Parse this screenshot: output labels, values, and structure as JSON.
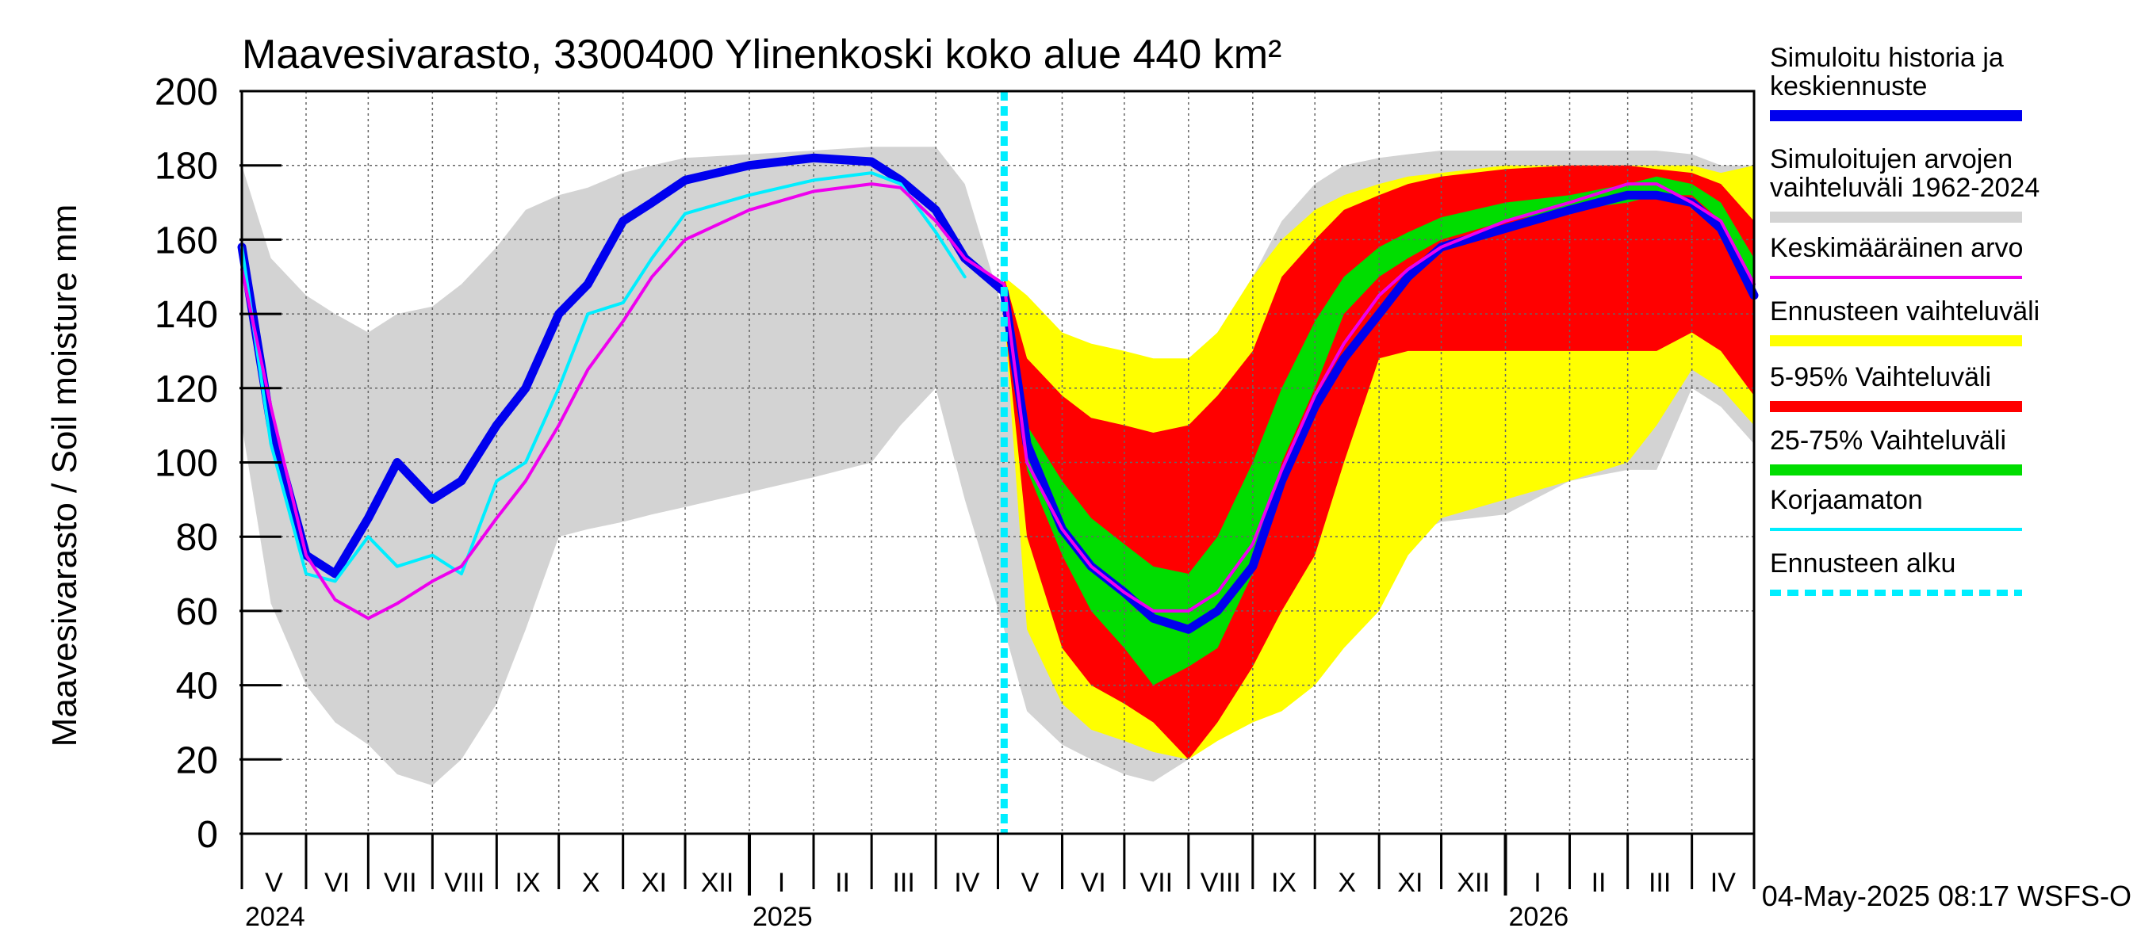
{
  "chart_data": {
    "type": "area",
    "title": "Maavesivarasto, 3300400 Ylinenkoski koko alue 440 km²",
    "ylabel": "Maavesivarasto / Soil moisture   mm",
    "ylim": [
      0,
      200
    ],
    "y_ticks": [
      "0",
      "20",
      "40",
      "60",
      "80",
      "100",
      "120",
      "140",
      "160",
      "180",
      "200"
    ],
    "x_start": "2024-05-01",
    "x_end": "2026-05-01",
    "months": [
      "V",
      "VI",
      "VII",
      "VIII",
      "IX",
      "X",
      "XI",
      "XII",
      "I",
      "II",
      "III",
      "IV",
      "V",
      "VI",
      "VII",
      "VIII",
      "IX",
      "X",
      "XI",
      "XII",
      "I",
      "II",
      "III",
      "IV"
    ],
    "years": [
      "2024",
      "2025",
      "2026"
    ],
    "forecast_start": "2025-05-04",
    "footer": "04-May-2025 08:17 WSFS-O",
    "colors": {
      "history_range": "#d3d3d3",
      "forecast_range": "#ffff00",
      "p5_95": "#ff0000",
      "p25_75": "#00dd00",
      "simulated": "#0000ee",
      "mean": "#ee00ee",
      "uncorrected": "#00eeff",
      "forecast_start_line": "#00eeff"
    },
    "legend": [
      {
        "label": "Simuloitu historia ja keskiennuste",
        "color": "#0000ee",
        "style": "thick"
      },
      {
        "label": "Simuloitujen arvojen vaihteluväli 1962-2024",
        "color": "#d3d3d3",
        "style": "thick"
      },
      {
        "label": "Keskimääräinen arvo",
        "color": "#ee00ee",
        "style": "thin"
      },
      {
        "label": "Ennusteen vaihteluväli",
        "color": "#ffff00",
        "style": "thick"
      },
      {
        "label": "5-95% Vaihteluväli",
        "color": "#ff0000",
        "style": "thick"
      },
      {
        "label": "25-75% Vaihteluväli",
        "color": "#00dd00",
        "style": "thick"
      },
      {
        "label": "Korjaamaton",
        "color": "#00eeff",
        "style": "thin"
      },
      {
        "label": "Ennusteen alku",
        "color": "#00eeff",
        "style": "dashed"
      }
    ],
    "x": [
      "2024-05-01",
      "2024-05-15",
      "2024-06-01",
      "2024-06-15",
      "2024-07-01",
      "2024-07-15",
      "2024-08-01",
      "2024-08-15",
      "2024-09-01",
      "2024-09-15",
      "2024-10-01",
      "2024-10-15",
      "2024-11-01",
      "2024-11-15",
      "2024-12-01",
      "2025-01-01",
      "2025-02-01",
      "2025-03-01",
      "2025-03-15",
      "2025-04-01",
      "2025-04-15",
      "2025-05-04",
      "2025-05-15",
      "2025-06-01",
      "2025-06-15",
      "2025-07-01",
      "2025-07-15",
      "2025-08-01",
      "2025-08-15",
      "2025-09-01",
      "2025-09-15",
      "2025-10-01",
      "2025-10-15",
      "2025-11-01",
      "2025-11-15",
      "2025-12-01",
      "2026-01-01",
      "2026-02-01",
      "2026-03-01",
      "2026-03-15",
      "2026-04-01",
      "2026-04-15",
      "2026-05-01"
    ],
    "series": [
      {
        "key": "hist_min",
        "values": [
          110,
          62,
          40,
          30,
          24,
          16,
          13,
          20,
          35,
          55,
          80,
          82,
          84,
          86,
          88,
          92,
          96,
          100,
          110,
          120,
          90,
          55,
          33,
          24,
          20,
          16,
          14,
          20,
          27,
          30,
          35,
          50,
          70,
          75,
          80,
          84,
          86,
          95,
          98,
          98,
          120,
          115,
          105
        ]
      },
      {
        "key": "hist_max",
        "values": [
          180,
          155,
          145,
          140,
          135,
          140,
          142,
          148,
          158,
          168,
          172,
          174,
          178,
          180,
          182,
          183,
          184,
          185,
          185,
          185,
          175,
          140,
          125,
          120,
          118,
          118,
          120,
          125,
          135,
          150,
          165,
          175,
          180,
          182,
          183,
          184,
          184,
          184,
          184,
          184,
          183,
          180,
          180
        ]
      },
      {
        "key": "fc_min",
        "values": [
          null,
          null,
          null,
          null,
          null,
          null,
          null,
          null,
          null,
          null,
          null,
          null,
          null,
          null,
          null,
          null,
          null,
          null,
          null,
          null,
          null,
          140,
          55,
          35,
          28,
          25,
          22,
          20,
          25,
          30,
          33,
          40,
          50,
          60,
          75,
          85,
          90,
          95,
          100,
          110,
          125,
          120,
          110
        ]
      },
      {
        "key": "fc_max",
        "values": [
          null,
          null,
          null,
          null,
          null,
          null,
          null,
          null,
          null,
          null,
          null,
          null,
          null,
          null,
          null,
          null,
          null,
          null,
          null,
          null,
          null,
          150,
          145,
          135,
          132,
          130,
          128,
          128,
          135,
          150,
          160,
          168,
          172,
          175,
          177,
          178,
          180,
          180,
          180,
          180,
          180,
          178,
          180
        ]
      },
      {
        "key": "p5",
        "values": [
          null,
          null,
          null,
          null,
          null,
          null,
          null,
          null,
          null,
          null,
          null,
          null,
          null,
          null,
          null,
          null,
          null,
          null,
          null,
          null,
          null,
          140,
          80,
          50,
          40,
          35,
          30,
          20,
          30,
          45,
          60,
          75,
          100,
          128,
          130,
          130,
          130,
          130,
          130,
          130,
          135,
          130,
          118
        ]
      },
      {
        "key": "p95",
        "values": [
          null,
          null,
          null,
          null,
          null,
          null,
          null,
          null,
          null,
          null,
          null,
          null,
          null,
          null,
          null,
          null,
          null,
          null,
          null,
          null,
          null,
          150,
          128,
          118,
          112,
          110,
          108,
          110,
          118,
          130,
          150,
          160,
          168,
          172,
          175,
          177,
          179,
          180,
          180,
          179,
          178,
          175,
          165
        ]
      },
      {
        "key": "p25",
        "values": [
          null,
          null,
          null,
          null,
          null,
          null,
          null,
          null,
          null,
          null,
          null,
          null,
          null,
          null,
          null,
          null,
          null,
          null,
          null,
          null,
          null,
          145,
          98,
          75,
          60,
          50,
          40,
          45,
          50,
          70,
          100,
          120,
          140,
          150,
          155,
          160,
          165,
          168,
          170,
          172,
          172,
          165,
          148
        ]
      },
      {
        "key": "p75",
        "values": [
          null,
          null,
          null,
          null,
          null,
          null,
          null,
          null,
          null,
          null,
          null,
          null,
          null,
          null,
          null,
          null,
          null,
          null,
          null,
          null,
          null,
          148,
          110,
          95,
          85,
          78,
          72,
          70,
          80,
          100,
          120,
          138,
          150,
          158,
          162,
          166,
          170,
          172,
          175,
          177,
          175,
          170,
          155
        ]
      },
      {
        "key": "simulated",
        "name": "Simuloitu historia ja keskiennuste",
        "values": [
          158,
          110,
          75,
          70,
          85,
          100,
          90,
          95,
          110,
          120,
          140,
          148,
          165,
          170,
          176,
          180,
          182,
          181,
          176,
          168,
          155,
          146,
          105,
          82,
          72,
          65,
          58,
          55,
          60,
          72,
          95,
          115,
          128,
          140,
          150,
          158,
          163,
          168,
          172,
          172,
          170,
          163,
          145
        ]
      },
      {
        "key": "mean",
        "name": "Keskimääräinen arvo",
        "values": [
          152,
          115,
          75,
          63,
          58,
          62,
          68,
          72,
          85,
          95,
          110,
          125,
          138,
          150,
          160,
          168,
          173,
          175,
          174,
          165,
          155,
          148,
          100,
          82,
          72,
          65,
          60,
          60,
          65,
          78,
          98,
          118,
          132,
          145,
          152,
          158,
          165,
          170,
          175,
          175,
          170,
          165,
          148
        ]
      },
      {
        "key": "uncorrected",
        "name": "Korjaamaton",
        "values": [
          158,
          105,
          70,
          68,
          80,
          72,
          75,
          70,
          95,
          100,
          120,
          140,
          143,
          155,
          167,
          172,
          176,
          178,
          175,
          162,
          150,
          null,
          null,
          null,
          null,
          null,
          null,
          null,
          null,
          null,
          null,
          null,
          null,
          null,
          null,
          null,
          null,
          null,
          null,
          null,
          null,
          null,
          null
        ]
      }
    ]
  }
}
